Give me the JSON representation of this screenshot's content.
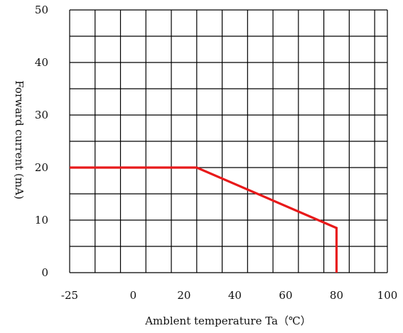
{
  "chart_data": {
    "type": "line",
    "title": "",
    "xlabel": "Amblent temperature Ta（℃）",
    "ylabel": "Forward current (mA)",
    "xlim": [
      -25,
      100
    ],
    "ylim": [
      0,
      50
    ],
    "x_ticks": [
      -25,
      -15,
      -5,
      5,
      15,
      25,
      35,
      45,
      55,
      65,
      75,
      85,
      95,
      100
    ],
    "y_ticks": [
      0,
      5,
      10,
      15,
      20,
      25,
      30,
      35,
      40,
      45,
      50
    ],
    "x_tick_labels": [
      {
        "value": -25,
        "label": "-25"
      },
      {
        "value": 0,
        "label": "0"
      },
      {
        "value": 20,
        "label": "20"
      },
      {
        "value": 40,
        "label": "40"
      },
      {
        "value": 60,
        "label": "60"
      },
      {
        "value": 80,
        "label": "80"
      },
      {
        "value": 100,
        "label": "100"
      }
    ],
    "y_tick_labels": [
      {
        "value": 0,
        "label": "0"
      },
      {
        "value": 10,
        "label": "10"
      },
      {
        "value": 20,
        "label": "20"
      },
      {
        "value": 30,
        "label": "30"
      },
      {
        "value": 40,
        "label": "40"
      },
      {
        "value": 50,
        "label": "50"
      }
    ],
    "grid": true,
    "series": [
      {
        "color": "#e8191a",
        "points": [
          [
            -25,
            20
          ],
          [
            25,
            20
          ],
          [
            80,
            8.5
          ],
          [
            80,
            0
          ]
        ]
      }
    ]
  }
}
